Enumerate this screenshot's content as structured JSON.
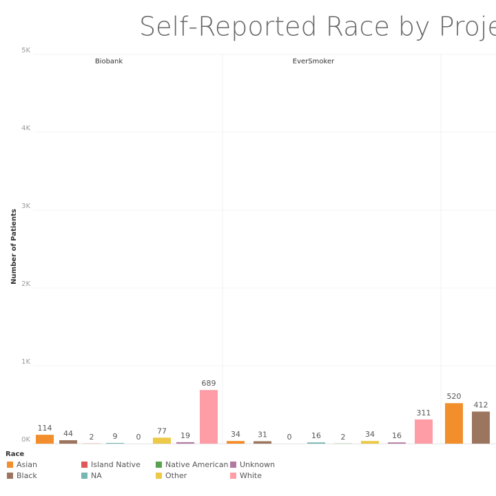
{
  "chart_data": {
    "type": "bar",
    "title": "Self-Reported Race by Projec",
    "y_axis_label": "Number of Patients",
    "legend_title": "Race",
    "categories": [
      "Asian",
      "Black",
      "Island Native",
      "NA",
      "Native American",
      "Other",
      "Unknown",
      "White"
    ],
    "colors": [
      "#f28e2b",
      "#9c755f",
      "#e15759",
      "#76b7b2",
      "#59a14f",
      "#edc948",
      "#b07aa1",
      "#ff9da7"
    ],
    "series": [
      {
        "name": "Biobank",
        "values": [
          114,
          44,
          2,
          9,
          0,
          77,
          19,
          689
        ]
      },
      {
        "name": "EverSmoker",
        "values": [
          34,
          31,
          0,
          16,
          2,
          34,
          16,
          311
        ]
      },
      {
        "name": null,
        "values": [
          520,
          412,
          null,
          null,
          null,
          null,
          null,
          null
        ]
      }
    ],
    "ylim": [
      0,
      5000
    ],
    "yticks": [
      {
        "value": 0,
        "label": "0K"
      },
      {
        "value": 1000,
        "label": "1K"
      },
      {
        "value": 2000,
        "label": "2K"
      },
      {
        "value": 3000,
        "label": "3K"
      },
      {
        "value": 4000,
        "label": "4K"
      },
      {
        "value": 5000,
        "label": "5K"
      }
    ],
    "grid": true
  }
}
